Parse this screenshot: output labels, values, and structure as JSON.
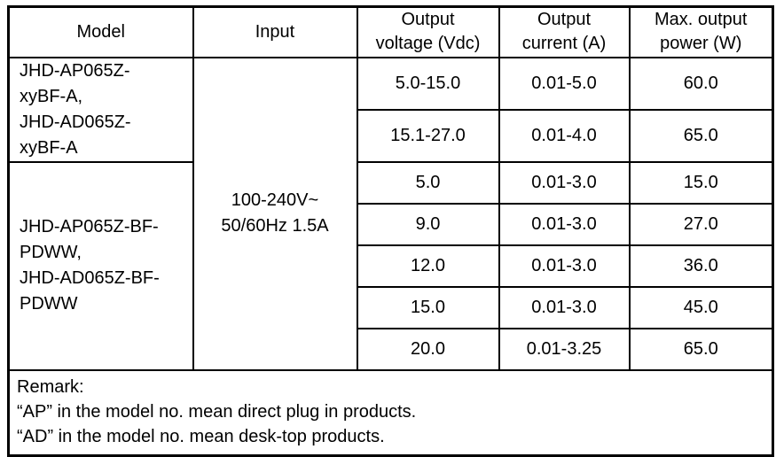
{
  "table": {
    "headers": {
      "model": "Model",
      "input": "Input",
      "voltage": "Output\nvoltage (Vdc)",
      "current": "Output\ncurrent (A)",
      "power": "Max. output\npower (W)"
    },
    "model_groups": [
      "JHD-AP065Z-\nxyBF-A,\nJHD-AD065Z-\nxyBF-A",
      "JHD-AP065Z-BF-\nPDWW,\nJHD-AD065Z-BF-\nPDWW"
    ],
    "input_value": "100-240V~\n50/60Hz 1.5A",
    "rows": [
      {
        "voltage": "5.0-15.0",
        "current": "0.01-5.0",
        "power": "60.0"
      },
      {
        "voltage": "15.1-27.0",
        "current": "0.01-4.0",
        "power": "65.0"
      },
      {
        "voltage": "5.0",
        "current": "0.01-3.0",
        "power": "15.0"
      },
      {
        "voltage": "9.0",
        "current": "0.01-3.0",
        "power": "27.0"
      },
      {
        "voltage": "12.0",
        "current": "0.01-3.0",
        "power": "36.0"
      },
      {
        "voltage": "15.0",
        "current": "0.01-3.0",
        "power": "45.0"
      },
      {
        "voltage": "20.0",
        "current": "0.01-3.25",
        "power": "65.0"
      }
    ],
    "remark": {
      "lines": [
        "Remark:",
        "“AP” in the model no. mean direct plug in products.",
        "“AD” in the model no. mean desk-top products."
      ]
    },
    "colors": {
      "border": "#000000",
      "text": "#000000",
      "background": "#ffffff"
    }
  }
}
